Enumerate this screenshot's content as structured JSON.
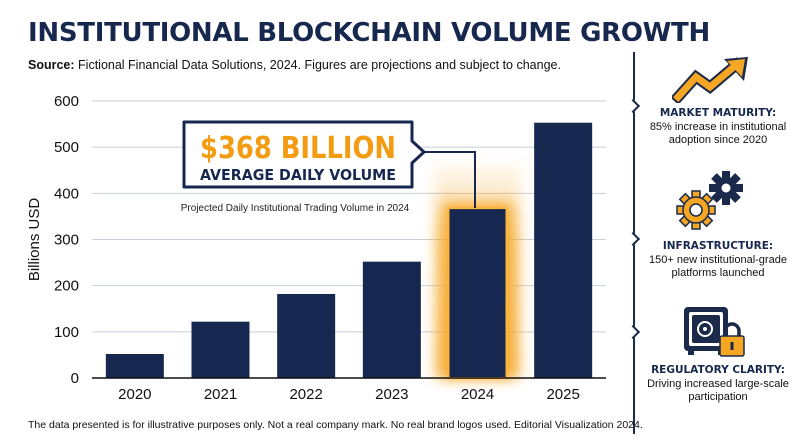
{
  "header": {
    "title": "INSTITUTIONAL BLOCKCHAIN VOLUME GROWTH",
    "source_label": "Source:",
    "source_text": "Fictional Financial Data Solutions, 2024. Figures are projections and subject to change."
  },
  "colors": {
    "bar": "#16284f",
    "highlight_glow": "#f5a623",
    "callout_border": "#16284f",
    "callout_text": "#f39c12"
  },
  "callout": {
    "amount": "$368 BILLION",
    "subtitle": "AVERAGE DAILY VOLUME",
    "note": "Projected Daily Institutional Trading Volume in 2024"
  },
  "chart_data": {
    "type": "bar",
    "categories": [
      "2020",
      "2021",
      "2022",
      "2023",
      "2024",
      "2025"
    ],
    "values": [
      52,
      122,
      182,
      252,
      368,
      553
    ],
    "highlight_category": "2024",
    "ylabel": "Billions USD",
    "xlabel": "",
    "ylim": [
      0,
      600
    ],
    "yticks": [
      0,
      100,
      200,
      300,
      400,
      500,
      600
    ],
    "grid": true
  },
  "side_panel": [
    {
      "icon": "growth-arrow-icon",
      "heading": "MARKET MATURITY:",
      "text": "85% increase in institutional adoption since 2020"
    },
    {
      "icon": "gears-icon",
      "heading": "INFRASTRUCTURE:",
      "text": "150+ new institutional-grade platforms launched"
    },
    {
      "icon": "safe-lock-icon",
      "heading": "REGULATORY CLARITY:",
      "text": "Driving increased large-scale participation"
    }
  ],
  "footnote": "The data presented is for illustrative purposes only. Not a real company mark. No real brand logos used. Editorial Visualization 2024."
}
